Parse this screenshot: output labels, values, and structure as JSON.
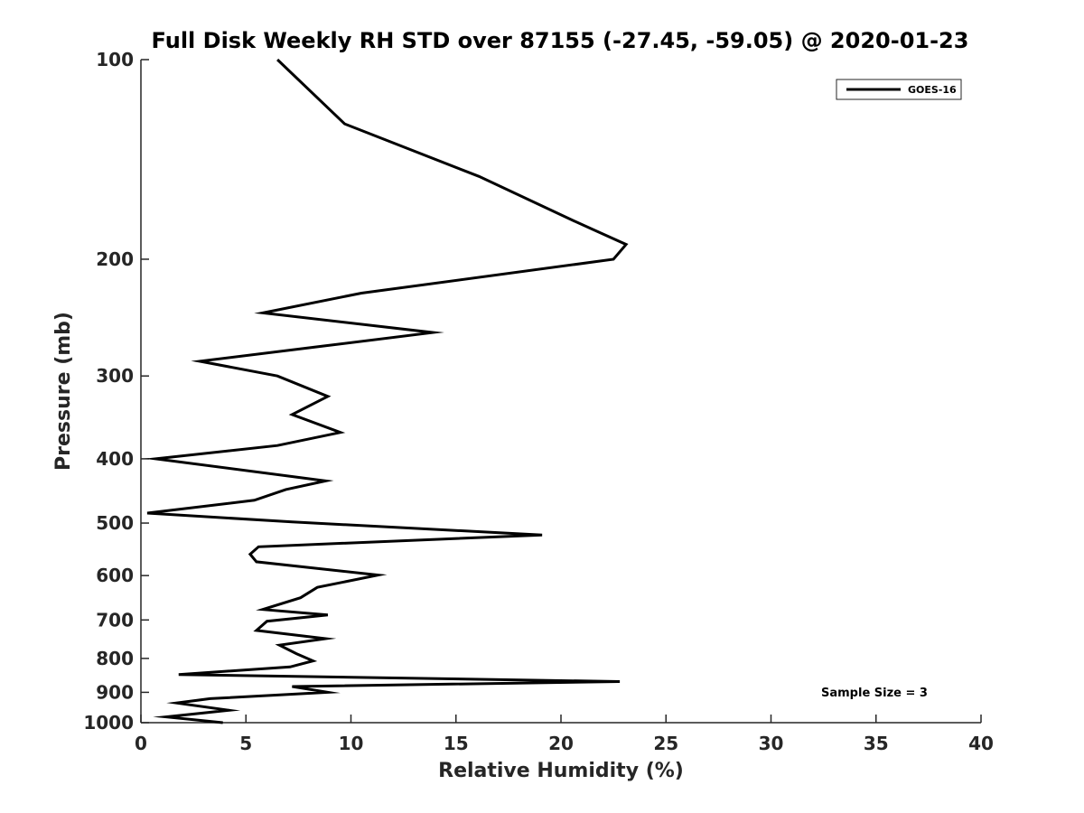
{
  "chart_data": {
    "type": "line",
    "title": "Full Disk Weekly RH STD over 87155 (-27.45, -59.05) @ 2020-01-23",
    "xlabel": "Relative Humidity (%)",
    "ylabel": "Pressure (mb)",
    "xlim": [
      0,
      40
    ],
    "ylim": [
      100,
      1000
    ],
    "y_scale": "log",
    "y_reversed": true,
    "grid": false,
    "legend_position": "top-right",
    "x_ticks": [
      0,
      5,
      10,
      15,
      20,
      25,
      30,
      35,
      40
    ],
    "y_ticks": [
      100,
      200,
      300,
      400,
      500,
      600,
      700,
      800,
      900,
      1000
    ],
    "series": [
      {
        "name": "GOES-16",
        "color": "#000000",
        "points": [
          [
            6.5,
            100
          ],
          [
            9.7,
            125
          ],
          [
            16.1,
            150
          ],
          [
            20.6,
            175
          ],
          [
            23.1,
            190
          ],
          [
            22.5,
            200
          ],
          [
            10.5,
            225
          ],
          [
            5.8,
            241
          ],
          [
            13.9,
            258
          ],
          [
            2.8,
            285
          ],
          [
            6.5,
            300
          ],
          [
            8.9,
            322
          ],
          [
            7.2,
            343
          ],
          [
            9.5,
            365
          ],
          [
            6.5,
            382
          ],
          [
            0.7,
            400
          ],
          [
            8.8,
            432
          ],
          [
            6.9,
            445
          ],
          [
            5.4,
            462
          ],
          [
            0.3,
            483
          ],
          [
            7.2,
            498
          ],
          [
            19.1,
            521
          ],
          [
            5.6,
            543
          ],
          [
            5.2,
            557
          ],
          [
            5.5,
            572
          ],
          [
            11.3,
            599
          ],
          [
            8.4,
            625
          ],
          [
            7.6,
            648
          ],
          [
            5.8,
            675
          ],
          [
            8.9,
            688
          ],
          [
            6.0,
            703
          ],
          [
            5.5,
            726
          ],
          [
            8.8,
            747
          ],
          [
            6.6,
            764
          ],
          [
            7.4,
            787
          ],
          [
            8.2,
            807
          ],
          [
            7.1,
            824
          ],
          [
            1.8,
            846
          ],
          [
            22.8,
            867
          ],
          [
            7.2,
            882
          ],
          [
            8.9,
            900
          ],
          [
            3.3,
            920
          ],
          [
            1.7,
            934
          ],
          [
            4.2,
            958
          ],
          [
            1.2,
            980
          ],
          [
            3.9,
            1000
          ]
        ]
      }
    ],
    "annotations": [
      "Sample Size = 3"
    ]
  }
}
